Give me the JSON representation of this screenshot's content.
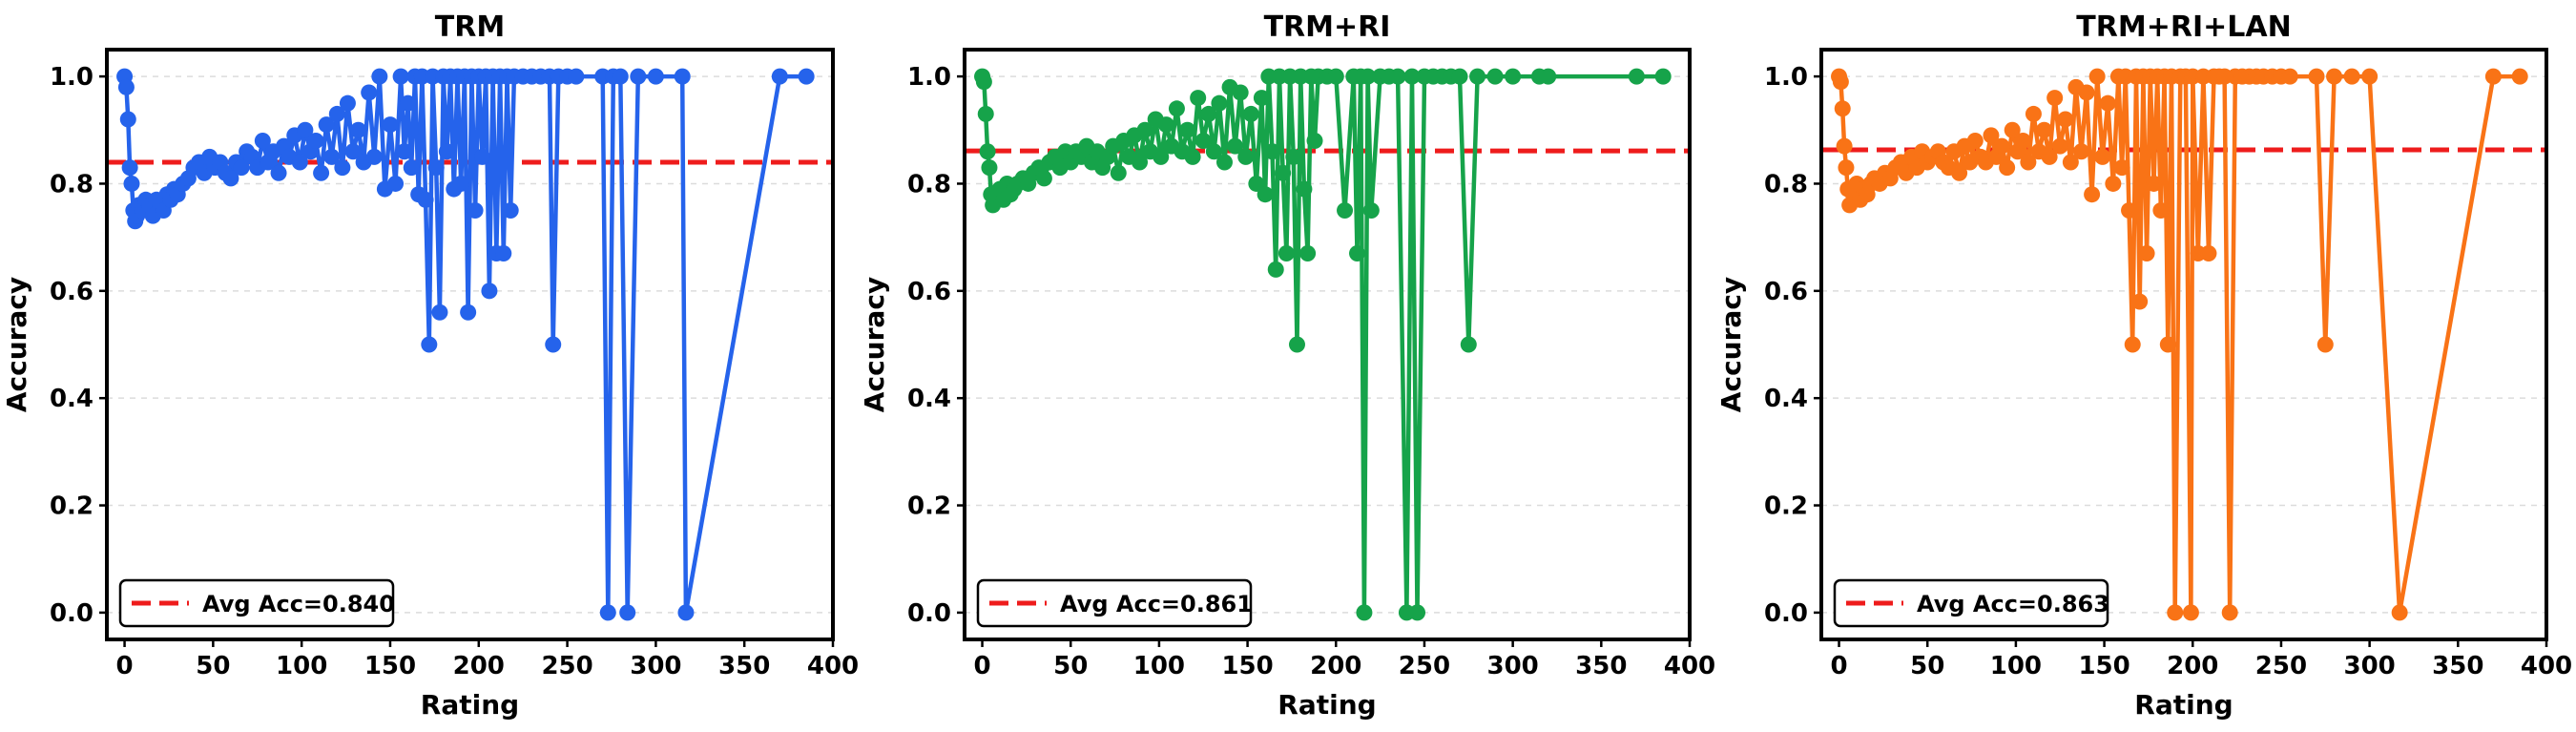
{
  "chart_data": [
    {
      "type": "line",
      "title": "TRM",
      "xlabel": "Rating",
      "ylabel": "Accuracy",
      "xlim": [
        -10,
        400
      ],
      "ylim": [
        -0.05,
        1.05
      ],
      "xticks": [
        0,
        50,
        100,
        150,
        200,
        250,
        300,
        350,
        400
      ],
      "yticks": [
        0.0,
        0.2,
        0.4,
        0.6,
        0.8,
        1.0
      ],
      "xtick_labels": [
        "0",
        "50",
        "100",
        "150",
        "200",
        "250",
        "300",
        "350",
        "400"
      ],
      "ytick_labels": [
        "0.0",
        "0.2",
        "0.4",
        "0.6",
        "0.8",
        "1.0"
      ],
      "grid": "horizontal dashed",
      "legend_position": "lower-left",
      "color": "#2563eb",
      "avg_color": "#ee1c1c",
      "avg_value": 0.84,
      "legend_label": "Avg Acc=0.840",
      "series": [
        {
          "x": [
            0,
            1,
            2,
            3,
            4,
            5,
            6,
            7,
            8,
            10,
            12,
            14,
            16,
            18,
            20,
            22,
            24,
            26,
            28,
            30,
            33,
            36,
            39,
            42,
            45,
            48,
            51,
            54,
            57,
            60,
            63,
            66,
            69,
            72,
            75,
            78,
            81,
            84,
            87,
            90,
            93,
            96,
            99,
            102,
            105,
            108,
            111,
            114,
            117,
            120,
            123,
            126,
            129,
            132,
            135,
            138,
            141,
            144,
            147,
            150,
            153,
            156,
            158,
            160,
            162,
            164,
            166,
            168,
            170,
            172,
            174,
            176,
            178,
            180,
            182,
            184,
            186,
            188,
            190,
            192,
            194,
            196,
            198,
            200,
            202,
            204,
            206,
            208,
            210,
            212,
            214,
            216,
            218,
            220,
            225,
            230,
            235,
            240,
            242,
            245,
            250,
            255,
            270,
            273,
            276,
            280,
            284,
            290,
            300,
            315,
            317,
            370,
            385
          ],
          "y": [
            1.0,
            0.98,
            0.92,
            0.83,
            0.8,
            0.75,
            0.73,
            0.74,
            0.76,
            0.75,
            0.77,
            0.76,
            0.74,
            0.77,
            0.76,
            0.75,
            0.78,
            0.77,
            0.79,
            0.78,
            0.8,
            0.81,
            0.83,
            0.84,
            0.82,
            0.85,
            0.83,
            0.84,
            0.82,
            0.81,
            0.84,
            0.83,
            0.86,
            0.85,
            0.83,
            0.88,
            0.84,
            0.86,
            0.82,
            0.87,
            0.85,
            0.89,
            0.84,
            0.9,
            0.86,
            0.88,
            0.82,
            0.91,
            0.85,
            0.93,
            0.83,
            0.95,
            0.86,
            0.9,
            0.84,
            0.97,
            0.85,
            1.0,
            0.79,
            0.91,
            0.8,
            1.0,
            0.86,
            0.95,
            0.83,
            1.0,
            0.78,
            1.0,
            0.77,
            0.5,
            1.0,
            0.83,
            0.56,
            1.0,
            0.86,
            1.0,
            0.79,
            1.0,
            0.8,
            1.0,
            0.56,
            1.0,
            0.75,
            1.0,
            0.85,
            1.0,
            0.6,
            1.0,
            0.67,
            1.0,
            0.67,
            1.0,
            0.75,
            1.0,
            1.0,
            1.0,
            1.0,
            1.0,
            0.5,
            1.0,
            1.0,
            1.0,
            1.0,
            0.0,
            1.0,
            1.0,
            0.0,
            1.0,
            1.0,
            1.0,
            0.0,
            1.0,
            1.0
          ]
        }
      ]
    },
    {
      "type": "line",
      "title": "TRM+RI",
      "xlabel": "Rating",
      "ylabel": "Accuracy",
      "xlim": [
        -10,
        400
      ],
      "ylim": [
        -0.05,
        1.05
      ],
      "xticks": [
        0,
        50,
        100,
        150,
        200,
        250,
        300,
        350,
        400
      ],
      "yticks": [
        0.0,
        0.2,
        0.4,
        0.6,
        0.8,
        1.0
      ],
      "xtick_labels": [
        "0",
        "50",
        "100",
        "150",
        "200",
        "250",
        "300",
        "350",
        "400"
      ],
      "ytick_labels": [
        "0.0",
        "0.2",
        "0.4",
        "0.6",
        "0.8",
        "1.0"
      ],
      "grid": "horizontal dashed",
      "legend_position": "lower-left",
      "color": "#16a34a",
      "avg_color": "#ee1c1c",
      "avg_value": 0.861,
      "legend_label": "Avg Acc=0.861",
      "series": [
        {
          "x": [
            0,
            1,
            2,
            3,
            4,
            5,
            6,
            8,
            10,
            12,
            14,
            16,
            18,
            20,
            23,
            26,
            29,
            32,
            35,
            38,
            41,
            44,
            47,
            50,
            53,
            56,
            59,
            62,
            65,
            68,
            71,
            74,
            77,
            80,
            83,
            86,
            89,
            92,
            95,
            98,
            101,
            104,
            107,
            110,
            113,
            116,
            119,
            122,
            125,
            128,
            131,
            134,
            137,
            140,
            143,
            146,
            149,
            152,
            155,
            158,
            160,
            162,
            164,
            166,
            168,
            170,
            172,
            174,
            176,
            178,
            180,
            182,
            184,
            186,
            188,
            190,
            195,
            200,
            205,
            210,
            212,
            214,
            216,
            218,
            220,
            225,
            230,
            235,
            240,
            243,
            246,
            250,
            255,
            260,
            265,
            270,
            275,
            280,
            290,
            300,
            315,
            320,
            370,
            385
          ],
          "y": [
            1.0,
            0.99,
            0.93,
            0.86,
            0.83,
            0.78,
            0.76,
            0.78,
            0.79,
            0.77,
            0.8,
            0.78,
            0.79,
            0.8,
            0.81,
            0.8,
            0.82,
            0.83,
            0.81,
            0.84,
            0.85,
            0.83,
            0.86,
            0.84,
            0.86,
            0.85,
            0.87,
            0.84,
            0.86,
            0.83,
            0.85,
            0.87,
            0.82,
            0.88,
            0.85,
            0.89,
            0.84,
            0.9,
            0.86,
            0.92,
            0.85,
            0.91,
            0.87,
            0.94,
            0.86,
            0.9,
            0.85,
            0.96,
            0.88,
            0.93,
            0.86,
            0.95,
            0.84,
            0.98,
            0.87,
            0.97,
            0.85,
            0.93,
            0.8,
            0.96,
            0.78,
            1.0,
            0.86,
            0.64,
            1.0,
            0.82,
            0.67,
            1.0,
            0.85,
            0.5,
            1.0,
            0.79,
            0.67,
            1.0,
            0.88,
            1.0,
            1.0,
            1.0,
            0.75,
            1.0,
            0.67,
            1.0,
            0.0,
            1.0,
            0.75,
            1.0,
            1.0,
            1.0,
            0.0,
            1.0,
            0.0,
            1.0,
            1.0,
            1.0,
            1.0,
            1.0,
            0.5,
            1.0,
            1.0,
            1.0,
            1.0,
            1.0,
            1.0,
            1.0
          ]
        }
      ]
    },
    {
      "type": "line",
      "title": "TRM+RI+LAN",
      "xlabel": "Rating",
      "ylabel": "Accuracy",
      "xlim": [
        -10,
        400
      ],
      "ylim": [
        -0.05,
        1.05
      ],
      "xticks": [
        0,
        50,
        100,
        150,
        200,
        250,
        300,
        350,
        400
      ],
      "yticks": [
        0.0,
        0.2,
        0.4,
        0.6,
        0.8,
        1.0
      ],
      "xtick_labels": [
        "0",
        "50",
        "100",
        "150",
        "200",
        "250",
        "300",
        "350",
        "400"
      ],
      "ytick_labels": [
        "0.0",
        "0.2",
        "0.4",
        "0.6",
        "0.8",
        "1.0"
      ],
      "grid": "horizontal dashed",
      "legend_position": "lower-left",
      "color": "#f97316",
      "avg_color": "#ee1c1c",
      "avg_value": 0.863,
      "legend_label": "Avg Acc=0.863",
      "series": [
        {
          "x": [
            0,
            1,
            2,
            3,
            4,
            5,
            6,
            8,
            10,
            12,
            14,
            16,
            18,
            20,
            23,
            26,
            29,
            32,
            35,
            38,
            41,
            44,
            47,
            50,
            53,
            56,
            59,
            62,
            65,
            68,
            71,
            74,
            77,
            80,
            83,
            86,
            89,
            92,
            95,
            98,
            101,
            104,
            107,
            110,
            113,
            116,
            119,
            122,
            125,
            128,
            131,
            134,
            137,
            140,
            143,
            146,
            149,
            152,
            155,
            158,
            160,
            162,
            164,
            166,
            168,
            170,
            172,
            174,
            176,
            178,
            180,
            182,
            184,
            186,
            188,
            190,
            193,
            196,
            199,
            200,
            203,
            206,
            209,
            212,
            215,
            218,
            221,
            224,
            228,
            232,
            236,
            240,
            245,
            250,
            255,
            270,
            275,
            280,
            290,
            300,
            317,
            370,
            385
          ],
          "y": [
            1.0,
            0.99,
            0.94,
            0.87,
            0.83,
            0.79,
            0.76,
            0.78,
            0.8,
            0.77,
            0.79,
            0.78,
            0.8,
            0.81,
            0.8,
            0.82,
            0.81,
            0.83,
            0.84,
            0.82,
            0.85,
            0.83,
            0.86,
            0.84,
            0.85,
            0.86,
            0.84,
            0.83,
            0.86,
            0.82,
            0.87,
            0.84,
            0.88,
            0.85,
            0.84,
            0.89,
            0.85,
            0.87,
            0.83,
            0.9,
            0.86,
            0.88,
            0.84,
            0.93,
            0.86,
            0.9,
            0.85,
            0.96,
            0.87,
            0.92,
            0.84,
            0.98,
            0.86,
            0.97,
            0.78,
            1.0,
            0.85,
            0.95,
            0.8,
            1.0,
            0.83,
            1.0,
            0.75,
            0.5,
            1.0,
            0.58,
            1.0,
            0.67,
            1.0,
            0.8,
            1.0,
            0.75,
            1.0,
            0.5,
            1.0,
            0.0,
            1.0,
            1.0,
            0.0,
            1.0,
            0.67,
            1.0,
            0.67,
            1.0,
            1.0,
            1.0,
            0.0,
            1.0,
            1.0,
            1.0,
            1.0,
            1.0,
            1.0,
            1.0,
            1.0,
            1.0,
            0.5,
            1.0,
            1.0,
            1.0,
            0.0,
            1.0,
            1.0
          ]
        }
      ]
    }
  ]
}
